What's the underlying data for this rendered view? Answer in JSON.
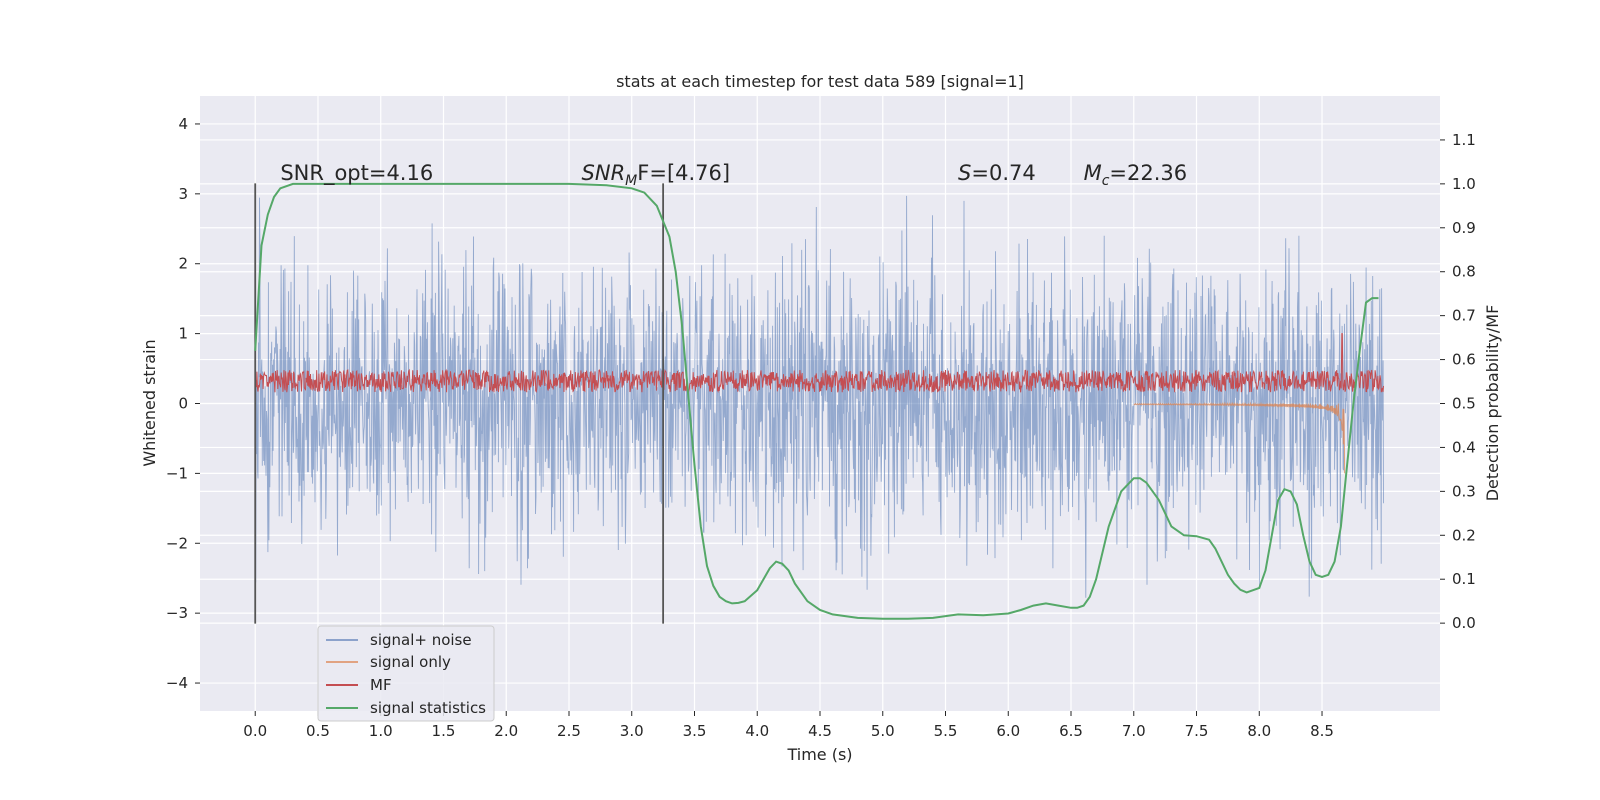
{
  "colors": {
    "background": "#eaeaf2",
    "grid": "#ffffff",
    "signal_noise": "#4c72b0",
    "signal_only": "#dd8452",
    "mf": "#c44e52",
    "signal_statistics": "#55a868",
    "marker": "#555555"
  },
  "chart_data": {
    "type": "line",
    "title": "stats at each timestep for test data 589 [signal=1]",
    "xlabel": "Time (s)",
    "ylabel_left": "Whitened strain",
    "ylabel_right": "Detection probability/MF",
    "xlim": [
      -0.44,
      9.44
    ],
    "ylim_left": [
      -4.4,
      4.4
    ],
    "ylim_right": [
      -0.2,
      1.2
    ],
    "x_ticks": [
      "0.0",
      "0.5",
      "1.0",
      "1.5",
      "2.0",
      "2.5",
      "3.0",
      "3.5",
      "4.0",
      "4.5",
      "5.0",
      "5.5",
      "6.0",
      "6.5",
      "7.0",
      "7.5",
      "8.0",
      "8.5"
    ],
    "y_ticks_left": [
      "−4",
      "−3",
      "−2",
      "−1",
      "0",
      "1",
      "2",
      "3",
      "4"
    ],
    "y_ticks_right": [
      "0.0",
      "0.1",
      "0.2",
      "0.3",
      "0.4",
      "0.5",
      "0.6",
      "0.7",
      "0.8",
      "0.9",
      "1.0",
      "1.1"
    ],
    "grid": true,
    "legend_position": "lower-left",
    "annotations": [
      {
        "kind": "plain",
        "x": 0.2,
        "y": 3.2,
        "text": "SNR_opt=4.16"
      },
      {
        "kind": "sub",
        "x": 2.6,
        "y": 3.2,
        "base": "SNR",
        "sub": "M",
        "rest": "F=[4.76]"
      },
      {
        "kind": "italic",
        "x": 5.6,
        "y": 3.2,
        "base": "S",
        "rest": "=0.74"
      },
      {
        "kind": "sub",
        "x": 6.6,
        "y": 3.2,
        "base": "M",
        "sub": "c",
        "rest": "=22.36"
      }
    ],
    "vertical_markers": [
      0.0,
      3.25
    ],
    "series": [
      {
        "name": "signal+ noise",
        "axis": "left",
        "style": "noise",
        "x_range": [
          0.0,
          8.99
        ],
        "amplitude": 1.0
      },
      {
        "name": "signal only",
        "axis": "left",
        "style": "chirp",
        "x_range": [
          7.0,
          8.68
        ],
        "peak": -1.0
      },
      {
        "name": "MF",
        "axis": "left",
        "style": "band",
        "x_range": [
          0.0,
          8.99
        ],
        "center": 0.32,
        "spread": 0.16,
        "spikes": [
          {
            "x": 8.66,
            "y": 1.0
          }
        ]
      },
      {
        "name": "signal statistics",
        "axis": "right",
        "style": "line",
        "x": [
          0.0,
          0.05,
          0.1,
          0.15,
          0.2,
          0.3,
          0.5,
          1.0,
          2.0,
          2.5,
          2.8,
          3.0,
          3.1,
          3.2,
          3.3,
          3.35,
          3.4,
          3.45,
          3.5,
          3.55,
          3.6,
          3.65,
          3.7,
          3.75,
          3.8,
          3.85,
          3.9,
          4.0,
          4.05,
          4.1,
          4.15,
          4.2,
          4.25,
          4.3,
          4.4,
          4.5,
          4.6,
          4.8,
          5.0,
          5.2,
          5.4,
          5.6,
          5.8,
          6.0,
          6.1,
          6.2,
          6.3,
          6.4,
          6.5,
          6.55,
          6.6,
          6.65,
          6.7,
          6.8,
          6.9,
          7.0,
          7.05,
          7.1,
          7.2,
          7.3,
          7.4,
          7.5,
          7.6,
          7.65,
          7.7,
          7.75,
          7.8,
          7.85,
          7.9,
          8.0,
          8.05,
          8.1,
          8.15,
          8.2,
          8.25,
          8.3,
          8.35,
          8.4,
          8.45,
          8.5,
          8.55,
          8.6,
          8.65,
          8.7,
          8.75,
          8.8,
          8.85,
          8.9,
          8.95
        ],
        "y": [
          0.62,
          0.86,
          0.93,
          0.97,
          0.99,
          1.0,
          1.0,
          1.0,
          1.0,
          1.0,
          0.997,
          0.99,
          0.98,
          0.95,
          0.88,
          0.8,
          0.68,
          0.52,
          0.36,
          0.22,
          0.13,
          0.085,
          0.06,
          0.05,
          0.045,
          0.046,
          0.05,
          0.075,
          0.1,
          0.125,
          0.14,
          0.135,
          0.12,
          0.09,
          0.05,
          0.03,
          0.02,
          0.012,
          0.01,
          0.01,
          0.012,
          0.02,
          0.018,
          0.022,
          0.03,
          0.04,
          0.045,
          0.04,
          0.035,
          0.035,
          0.04,
          0.06,
          0.1,
          0.22,
          0.3,
          0.33,
          0.33,
          0.32,
          0.28,
          0.22,
          0.2,
          0.198,
          0.19,
          0.17,
          0.14,
          0.11,
          0.09,
          0.076,
          0.07,
          0.08,
          0.12,
          0.2,
          0.28,
          0.305,
          0.3,
          0.27,
          0.2,
          0.14,
          0.11,
          0.105,
          0.11,
          0.14,
          0.22,
          0.36,
          0.5,
          0.62,
          0.73,
          0.74,
          0.74
        ]
      }
    ]
  }
}
